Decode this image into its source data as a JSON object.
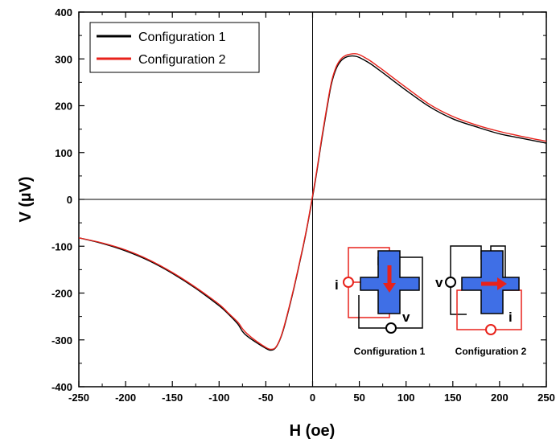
{
  "chart_data": {
    "type": "line",
    "xlabel": "H (oe)",
    "ylabel": "V (µV)",
    "xlim": [
      -250,
      250
    ],
    "ylim": [
      -400,
      400
    ],
    "xticks": [
      -250,
      -200,
      -150,
      -100,
      -50,
      0,
      50,
      100,
      150,
      200,
      250
    ],
    "yticks": [
      -400,
      -300,
      -200,
      -100,
      0,
      100,
      200,
      300,
      400
    ],
    "grid": false,
    "legend_position": "top-left",
    "series": [
      {
        "name": "Configuration 1",
        "color": "#000000",
        "x": [
          -250,
          -225,
          -200,
          -175,
          -150,
          -125,
          -100,
          -90,
          -80,
          -75,
          -70,
          -60,
          -50,
          -45,
          -40,
          -35,
          -30,
          -20,
          -10,
          -5,
          0,
          5,
          10,
          15,
          20,
          25,
          30,
          35,
          40,
          45,
          50,
          60,
          70,
          80,
          100,
          125,
          150,
          175,
          200,
          225,
          250
        ],
        "y": [
          -82,
          -94,
          -110,
          -131,
          -158,
          -190,
          -227,
          -245,
          -266,
          -282,
          -292,
          -306,
          -318,
          -322,
          -318,
          -300,
          -270,
          -190,
          -100,
          -50,
          5,
          65,
          130,
          190,
          245,
          278,
          295,
          303,
          306,
          306,
          303,
          292,
          278,
          263,
          233,
          198,
          172,
          155,
          140,
          130,
          120
        ]
      },
      {
        "name": "Configuration 2",
        "color": "#e8221b",
        "x": [
          -250,
          -225,
          -200,
          -175,
          -150,
          -125,
          -100,
          -90,
          -80,
          -75,
          -70,
          -60,
          -50,
          -45,
          -40,
          -35,
          -30,
          -20,
          -10,
          -5,
          0,
          5,
          10,
          15,
          20,
          25,
          30,
          35,
          40,
          45,
          50,
          60,
          70,
          80,
          100,
          125,
          150,
          175,
          200,
          225,
          250
        ],
        "y": [
          -82,
          -93,
          -108,
          -129,
          -156,
          -188,
          -224,
          -243,
          -262,
          -276,
          -287,
          -303,
          -316,
          -320,
          -317,
          -299,
          -268,
          -188,
          -98,
          -48,
          8,
          68,
          134,
          194,
          249,
          282,
          299,
          307,
          310,
          311,
          309,
          298,
          284,
          269,
          239,
          203,
          177,
          159,
          145,
          134,
          124
        ]
      }
    ]
  },
  "legend": {
    "items": [
      {
        "label": "Configuration 1",
        "color": "#000000"
      },
      {
        "label": "Configuration 2",
        "color": "#e8221b"
      }
    ]
  },
  "inset": {
    "config1_caption": "Configuration 1",
    "config2_caption": "Configuration 2",
    "config1_current_label": "i",
    "config1_voltage_label": "v",
    "config2_voltage_label": "v",
    "config2_current_label": "i",
    "cross_color": "#3f6fe6",
    "arrow_color": "#e8221b",
    "wire_black": "#000000",
    "wire_red": "#e8221b"
  }
}
